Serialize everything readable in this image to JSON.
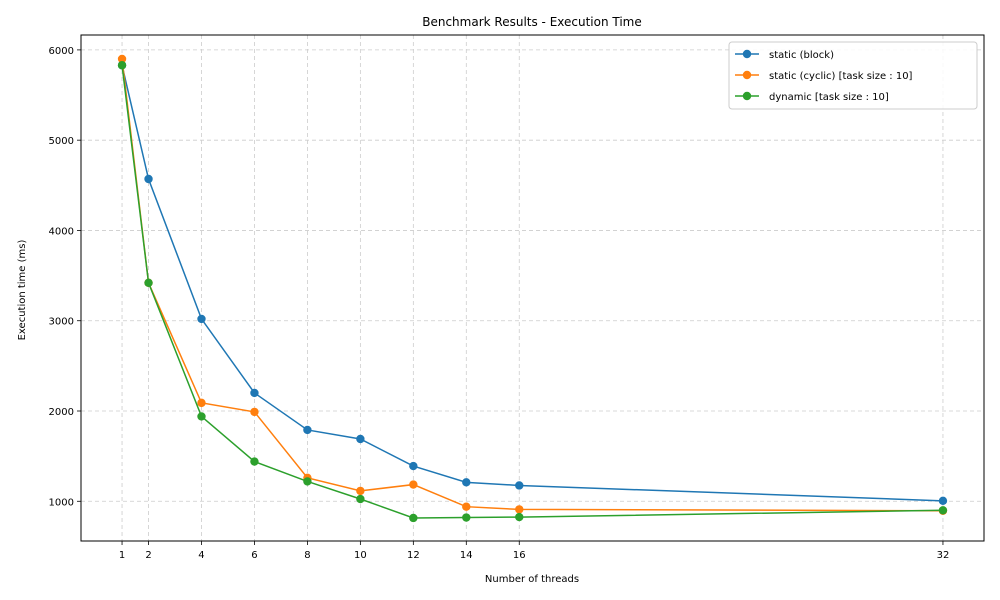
{
  "chart_data": {
    "type": "line",
    "title": "Benchmark Results - Execution Time",
    "xlabel": "Number of threads",
    "ylabel": "Execution time (ms)",
    "x": [
      1,
      2,
      4,
      6,
      8,
      10,
      12,
      14,
      16,
      32
    ],
    "xticks": [
      1,
      2,
      4,
      6,
      8,
      10,
      12,
      14,
      16,
      32
    ],
    "yticks": [
      1000,
      2000,
      3000,
      4000,
      5000,
      6000
    ],
    "xlim": [
      -0.55,
      33.55
    ],
    "ylim": [
      560,
      6165
    ],
    "grid": true,
    "legend_position": "top-right",
    "series": [
      {
        "name": "static (block)",
        "color": "#1f77b4",
        "values": [
          5830,
          4570,
          3020,
          2200,
          1790,
          1690,
          1390,
          1210,
          1175,
          1005
        ]
      },
      {
        "name": "static (cyclic) [task size : 10]",
        "color": "#ff7f0e",
        "values": [
          5900,
          3420,
          2090,
          1990,
          1260,
          1115,
          1185,
          940,
          910,
          895
        ]
      },
      {
        "name": "dynamic [task size : 10]",
        "color": "#2ca02c",
        "values": [
          5830,
          3420,
          1940,
          1440,
          1220,
          1025,
          815,
          820,
          825,
          900
        ]
      }
    ]
  }
}
